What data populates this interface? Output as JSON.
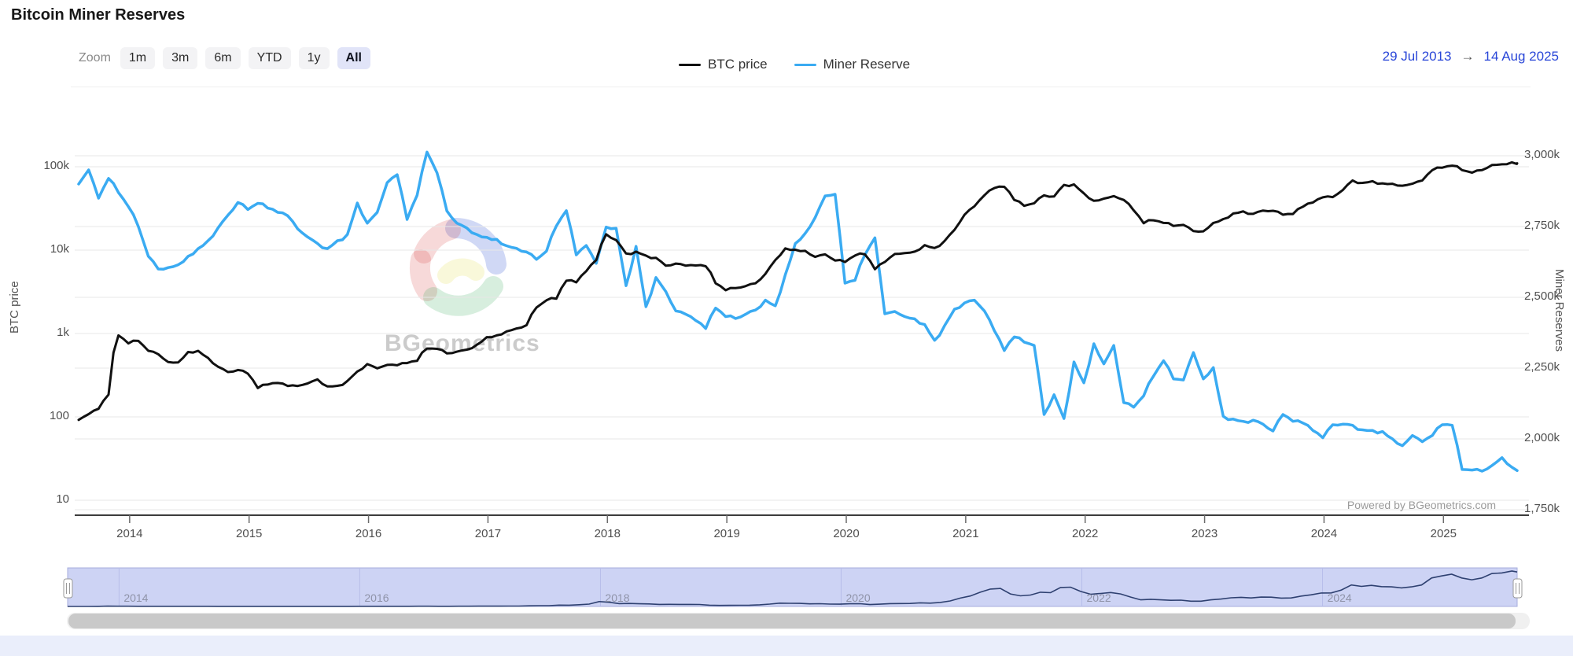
{
  "header": {
    "title": "Bitcoin Miner Reserves"
  },
  "controls": {
    "zoom_label": "Zoom",
    "buttons": [
      {
        "label": "1m",
        "active": false
      },
      {
        "label": "3m",
        "active": false
      },
      {
        "label": "6m",
        "active": false
      },
      {
        "label": "YTD",
        "active": false
      },
      {
        "label": "1y",
        "active": false
      },
      {
        "label": "All",
        "active": true
      }
    ],
    "range": {
      "start": "29 Jul 2013",
      "arrow": "→",
      "end": "14 Aug 2025"
    }
  },
  "legend": [
    {
      "label": "BTC price",
      "color": "#111111"
    },
    {
      "label": "Miner Reserve",
      "color": "#3aabf2"
    }
  ],
  "watermark": {
    "text": "BGeometrics"
  },
  "powered_by": "Powered by BGeometrics.com",
  "colors": {
    "btc_line": "#111111",
    "reserve_line": "#3aabf2",
    "grid": "#e7e7e7",
    "axis_line": "#3c3c3c",
    "navigator_mask": "#cdd3f4",
    "navigator_line": "#2e4070",
    "range_link_blue": "#2946d8"
  },
  "chart_data": {
    "type": "line",
    "title": "Bitcoin Miner Reserves",
    "x_start_decimal_year": 2013.573,
    "x_step_years": 0.083333,
    "x_range": {
      "start": "29 Jul 2013",
      "end": "14 Aug 2025"
    },
    "x_axis": {
      "year_ticks": [
        "2014",
        "2015",
        "2016",
        "2017",
        "2018",
        "2019",
        "2020",
        "2021",
        "2022",
        "2023",
        "2024",
        "2025"
      ]
    },
    "left_axis": {
      "title": "BTC price",
      "type": "log",
      "ticks": [
        {
          "label": "100k",
          "value": 100000
        },
        {
          "label": "10k",
          "value": 10000
        },
        {
          "label": "1k",
          "value": 1000
        },
        {
          "label": "100",
          "value": 100
        },
        {
          "label": "10",
          "value": 10
        }
      ]
    },
    "right_axis": {
      "title": "Miner Reserves",
      "type": "linear",
      "unit": "k BTC",
      "ticks": [
        {
          "label": "3,000k",
          "value": 3000
        },
        {
          "label": "2,750k",
          "value": 2750
        },
        {
          "label": "2,500k",
          "value": 2500
        },
        {
          "label": "2,250k",
          "value": 2250
        },
        {
          "label": "2,000k",
          "value": 2000
        },
        {
          "label": "1,750k",
          "value": 1750
        }
      ]
    },
    "series": [
      {
        "name": "BTC price",
        "axis": "left",
        "color": "#111111",
        "unit": "USD",
        "cadence": "monthly",
        "values": [
          92,
          108,
          125,
          185,
          950,
          760,
          815,
          620,
          565,
          455,
          450,
          600,
          620,
          510,
          400,
          345,
          365,
          330,
          222,
          244,
          255,
          235,
          235,
          252,
          282,
          232,
          236,
          270,
          350,
          430,
          382,
          420,
          416,
          442,
          470,
          660,
          655,
          578,
          606,
          640,
          732,
          905,
          950,
          1060,
          1150,
          1260,
          2050,
          2500,
          2620,
          4300,
          4100,
          5600,
          7600,
          15500,
          13200,
          9100,
          9600,
          8600,
          8100,
          6500,
          6900,
          6500,
          6550,
          6400,
          4000,
          3300,
          3500,
          3700,
          4000,
          5200,
          7600,
          10500,
          10100,
          9800,
          8300,
          8900,
          7500,
          7200,
          8600,
          8900,
          5900,
          7200,
          9000,
          9200,
          9600,
          11500,
          10600,
          12900,
          17500,
          26500,
          33500,
          45500,
          55500,
          57500,
          40000,
          34000,
          36500,
          45500,
          44000,
          60500,
          61500,
          48000,
          39000,
          41500,
          44500,
          40000,
          30000,
          21000,
          22800,
          21200,
          19500,
          20100,
          16900,
          16800,
          21200,
          23600,
          27500,
          29200,
          27200,
          29800,
          29600,
          26600,
          27100,
          33200,
          37200,
          43000,
          43200,
          52500,
          68500,
          64000,
          67200,
          63200,
          62500,
          59200,
          62500,
          68500,
          91000,
          97500,
          103000,
          91000,
          85000,
          91000,
          105000,
          107000,
          113000,
          110000
        ]
      },
      {
        "name": "Miner Reserve",
        "axis": "right",
        "color": "#3aabf2",
        "unit": "k BTC",
        "cadence": "monthly",
        "values": [
          2900,
          2950,
          2850,
          2920,
          2870,
          2820,
          2750,
          2645,
          2600,
          2605,
          2615,
          2645,
          2672,
          2700,
          2745,
          2790,
          2835,
          2810,
          2832,
          2815,
          2800,
          2788,
          2742,
          2713,
          2690,
          2672,
          2700,
          2722,
          2833,
          2762,
          2800,
          2905,
          2933,
          2775,
          2860,
          3013,
          2940,
          2805,
          2762,
          2745,
          2722,
          2712,
          2705,
          2682,
          2673,
          2660,
          2634,
          2663,
          2752,
          2806,
          2650,
          2683,
          2620,
          2748,
          2744,
          2541,
          2680,
          2467,
          2570,
          2520,
          2452,
          2440,
          2418,
          2390,
          2462,
          2432,
          2425,
          2440,
          2455,
          2490,
          2470,
          2580,
          2690,
          2726,
          2782,
          2858,
          2864,
          2550,
          2560,
          2650,
          2710,
          2442,
          2450,
          2432,
          2424,
          2404,
          2348,
          2400,
          2458,
          2480,
          2490,
          2452,
          2382,
          2312,
          2360,
          2342,
          2330,
          2086,
          2156,
          2072,
          2272,
          2198,
          2336,
          2265,
          2330,
          2128,
          2112,
          2152,
          2222,
          2276,
          2212,
          2208,
          2305,
          2212,
          2252,
          2080,
          2070,
          2062,
          2066,
          2052,
          2028,
          2086,
          2062,
          2056,
          2030,
          2004,
          2050,
          2052,
          2048,
          2032,
          2030,
          2026,
          2000,
          1976,
          2012,
          1990,
          2012,
          2050,
          2048,
          1892,
          1890,
          1886,
          1906,
          1934,
          1900,
          1888
        ]
      }
    ],
    "navigator": {
      "series": "BTC price",
      "year_labels": [
        "2014",
        "2016",
        "2018",
        "2020",
        "2022",
        "2024"
      ],
      "year_values": [
        2014,
        2016,
        2018,
        2020,
        2022,
        2024
      ]
    },
    "grid": true,
    "legend_position": "top-center"
  }
}
